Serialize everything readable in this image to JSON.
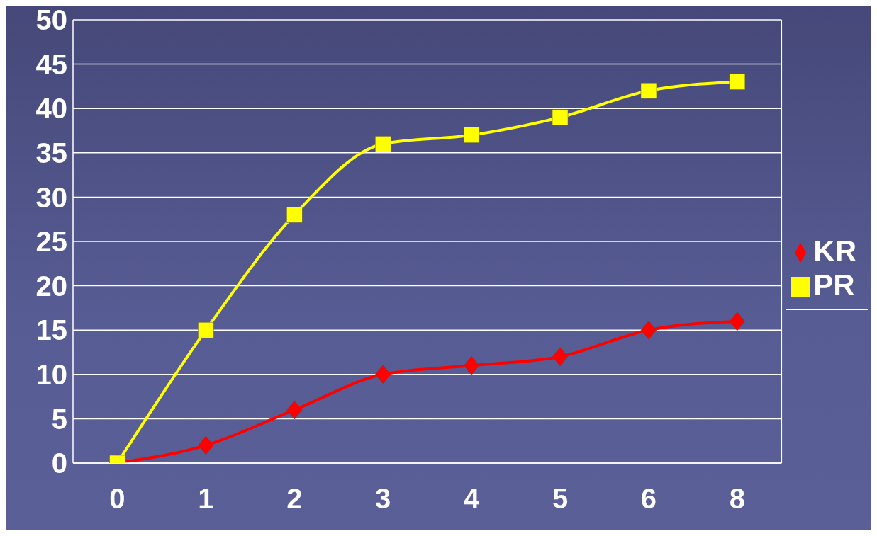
{
  "chart_data": {
    "type": "line",
    "categories": [
      "0",
      "1",
      "2",
      "3",
      "4",
      "5",
      "6",
      "8"
    ],
    "series": [
      {
        "name": "KR",
        "color": "#ff0000",
        "marker": "diamond",
        "values": [
          0,
          2,
          6,
          10,
          11,
          12,
          15,
          16
        ]
      },
      {
        "name": "PR",
        "color": "#ffff00",
        "marker": "square",
        "values": [
          0,
          15,
          28,
          36,
          37,
          39,
          42,
          43
        ]
      }
    ],
    "ylim": [
      0,
      50
    ],
    "yticks": [
      0,
      5,
      10,
      15,
      20,
      25,
      30,
      35,
      40,
      45,
      50
    ],
    "grid": "y",
    "legend": "right",
    "line_style": "solid"
  }
}
